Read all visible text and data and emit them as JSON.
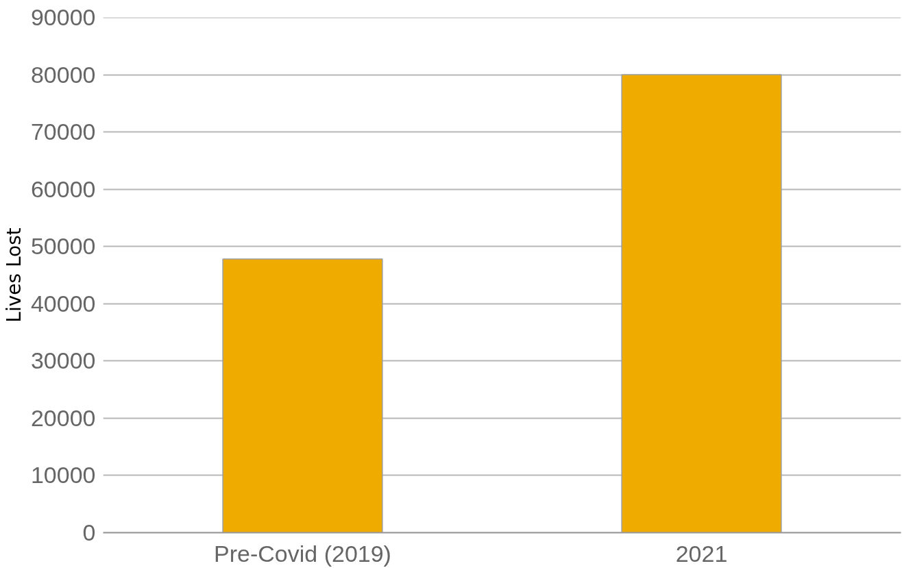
{
  "chart_data": {
    "type": "bar",
    "ylabel": "Lives Lost",
    "categories": [
      "Pre-Covid (2019)",
      "2021"
    ],
    "values": [
      47800,
      80000
    ],
    "color": "#f0ab00",
    "ylim": [
      0,
      90000
    ],
    "yticks": [
      0,
      10000,
      20000,
      30000,
      40000,
      50000,
      60000,
      70000,
      80000,
      90000
    ],
    "grid": "y"
  }
}
